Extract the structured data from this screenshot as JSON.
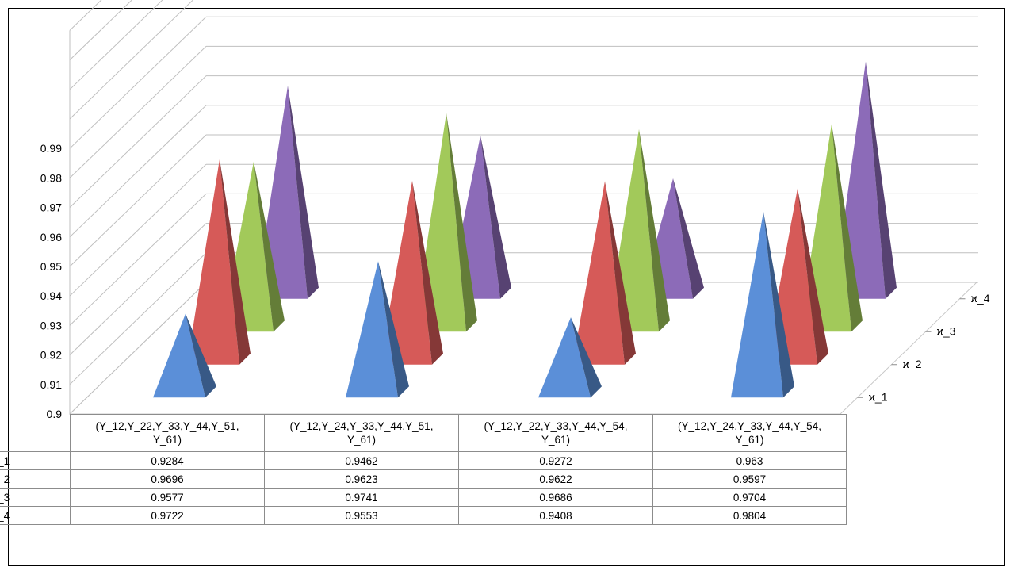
{
  "chart_data": {
    "type": "bar",
    "style": "3d-pyramid",
    "title": "",
    "xlabel": "",
    "ylabel": "",
    "ylim": [
      0.9,
      0.99
    ],
    "yticks": [
      "0.9",
      "0.91",
      "0.92",
      "0.93",
      "0.94",
      "0.95",
      "0.96",
      "0.97",
      "0.98",
      "0.99"
    ],
    "grid": true,
    "legend": "data-table",
    "categories": [
      [
        "(Y_12,Y_22,Y_33,Y_44,Y_51,",
        "Y_61)"
      ],
      [
        "(Y_12,Y_24,Y_33,Y_44,Y_51,",
        "Y_61)"
      ],
      [
        "(Y_12,Y_22,Y_33,Y_44,Y_54,",
        "Y_61)"
      ],
      [
        "(Y_12,Y_24,Y_33,Y_44,Y_54,",
        "Y_61)"
      ]
    ],
    "series": [
      {
        "name": "ϰ_1",
        "color": "#5b8fd8",
        "values": [
          0.9284,
          0.9462,
          0.9272,
          0.963
        ],
        "labels": [
          "0.9284",
          "0.9462",
          "0.9272",
          "0.963"
        ]
      },
      {
        "name": "ϰ_2",
        "color": "#d65a58",
        "values": [
          0.9696,
          0.9623,
          0.9622,
          0.9597
        ],
        "labels": [
          "0.9696",
          "0.9623",
          "0.9622",
          "0.9597"
        ]
      },
      {
        "name": "ϰ_3",
        "color": "#a2c95a",
        "values": [
          0.9577,
          0.9741,
          0.9686,
          0.9704
        ],
        "labels": [
          "0.9577",
          "0.9741",
          "0.9686",
          "0.9704"
        ]
      },
      {
        "name": "ϰ_4",
        "color": "#8c6bb8",
        "values": [
          0.9722,
          0.9553,
          0.9408,
          0.9804
        ],
        "labels": [
          "0.9722",
          "0.9553",
          "0.9408",
          "0.9804"
        ]
      }
    ]
  }
}
